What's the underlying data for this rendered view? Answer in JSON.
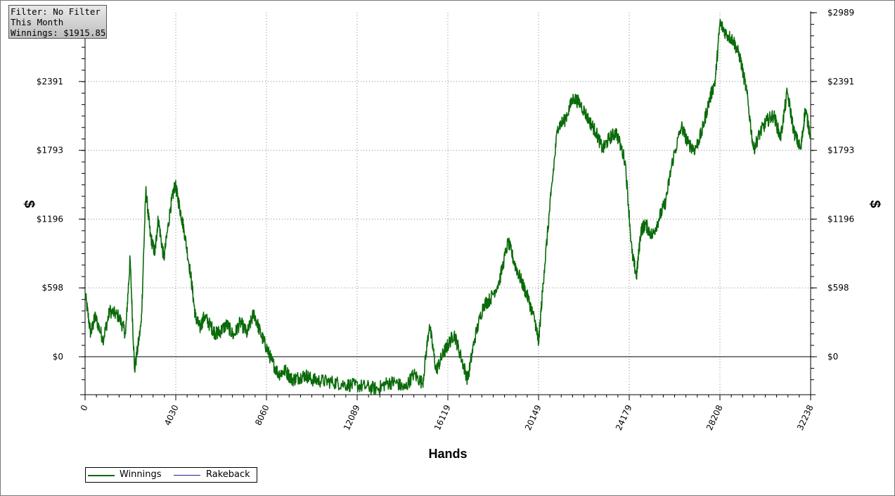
{
  "info_box": {
    "filter": "Filter: No Filter",
    "period": "This Month",
    "winnings": "Winnings: $1915.85"
  },
  "colors": {
    "winnings": "#0a6b0a",
    "rakeback": "#1f1f8f",
    "grid": "#8a8a8a",
    "axis": "#000000"
  },
  "chart_data": {
    "type": "line",
    "xlabel": "Hands",
    "ylabel_left": "$",
    "ylabel_right": "$",
    "xlim": [
      0,
      32238
    ],
    "ylim": [
      -330,
      2989
    ],
    "x_ticks": [
      "0",
      "4030",
      "8060",
      "12089",
      "16119",
      "20149",
      "24179",
      "28208",
      "32238"
    ],
    "y_ticks": [
      "$0",
      "$598",
      "$1196",
      "$1793",
      "$2391",
      "$2989"
    ],
    "left_y_ticks": [
      "$0",
      "$598",
      "$1196",
      "$1793",
      "$2391"
    ],
    "grid": true,
    "legend_position": "bottom-left",
    "series": [
      {
        "name": "Winnings",
        "x": [
          0,
          250,
          450,
          800,
          1100,
          1500,
          1800,
          2000,
          2200,
          2500,
          2700,
          2900,
          3100,
          3250,
          3500,
          3800,
          4000,
          4200,
          4400,
          4700,
          4900,
          5100,
          5300,
          5600,
          5800,
          6000,
          6300,
          6600,
          6900,
          7200,
          7500,
          7800,
          8060,
          8300,
          8600,
          8900,
          9200,
          9500,
          9800,
          10100,
          10500,
          11000,
          11500,
          12000,
          12500,
          13000,
          13400,
          13800,
          14200,
          14600,
          15000,
          15300,
          15600,
          15900,
          16119,
          16400,
          16700,
          17000,
          17300,
          17700,
          18000,
          18400,
          18800,
          19100,
          19400,
          19700,
          20000,
          20149,
          20400,
          20700,
          21000,
          21300,
          21700,
          22000,
          22400,
          22700,
          23000,
          23300,
          23600,
          24000,
          24300,
          24500,
          24700,
          24900,
          25200,
          25500,
          25800,
          26100,
          26500,
          26800,
          27100,
          27400,
          27700,
          28000,
          28208,
          28500,
          28800,
          29100,
          29400,
          29700,
          30000,
          30300,
          30600,
          30900,
          31200,
          31500,
          31800,
          32000,
          32238
        ],
        "values": [
          550,
          200,
          350,
          150,
          400,
          350,
          200,
          850,
          -120,
          300,
          1450,
          1050,
          900,
          1200,
          850,
          1300,
          1500,
          1300,
          1100,
          700,
          350,
          250,
          350,
          260,
          200,
          220,
          280,
          180,
          300,
          200,
          380,
          200,
          80,
          -40,
          -150,
          -120,
          -200,
          -180,
          -160,
          -200,
          -210,
          -220,
          -240,
          -250,
          -260,
          -280,
          -230,
          -220,
          -280,
          -150,
          -230,
          280,
          -120,
          20,
          100,
          200,
          0,
          -200,
          150,
          450,
          500,
          650,
          1000,
          800,
          650,
          500,
          300,
          120,
          750,
          1400,
          2000,
          2050,
          2250,
          2200,
          2050,
          1950,
          1800,
          1900,
          1950,
          1700,
          900,
          700,
          1100,
          1150,
          1050,
          1200,
          1350,
          1700,
          2000,
          1850,
          1800,
          1950,
          2200,
          2400,
          2900,
          2800,
          2750,
          2600,
          2300,
          1800,
          1950,
          2050,
          2100,
          1900,
          2300,
          1950,
          1800,
          2150,
          1916
        ]
      },
      {
        "name": "Rakeback",
        "x": [],
        "values": []
      }
    ]
  }
}
